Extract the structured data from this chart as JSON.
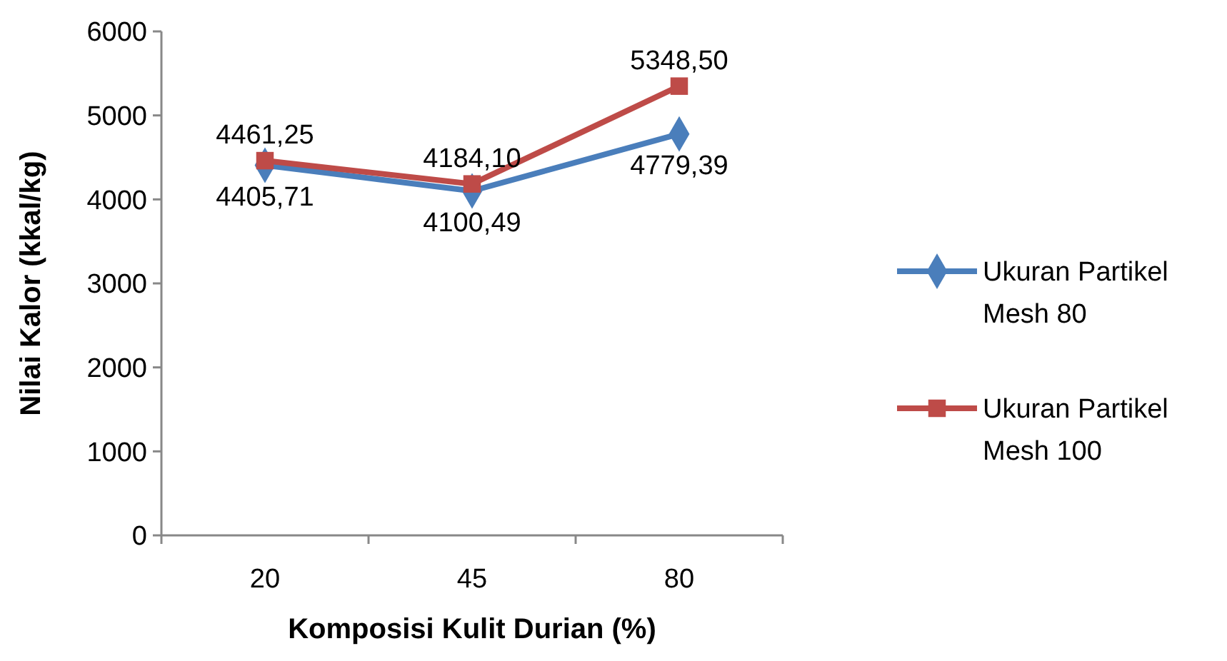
{
  "chart_data": {
    "type": "line",
    "xlabel": "Komposisi Kulit Durian (%)",
    "ylabel": "Nilai Kalor (kkal/kg)",
    "categories": [
      "20",
      "45",
      "80"
    ],
    "series": [
      {
        "name": "Ukuran Partikel Mesh 80",
        "color": "#4a7ebb",
        "marker": "diamond",
        "values": [
          4405.71,
          4100.49,
          4779.39
        ],
        "value_labels": [
          "4405,71",
          "4100,49",
          "4779,39"
        ]
      },
      {
        "name": "Ukuran Partikel Mesh 100",
        "color": "#be4b48",
        "marker": "square",
        "values": [
          4461.25,
          4184.1,
          5348.5
        ],
        "value_labels": [
          "4461,25",
          "4184,10",
          "5348,50"
        ]
      }
    ],
    "ylim": [
      0,
      6000
    ],
    "yticks": [
      0,
      1000,
      2000,
      3000,
      4000,
      5000,
      6000
    ],
    "grid": false,
    "legend": "right"
  }
}
